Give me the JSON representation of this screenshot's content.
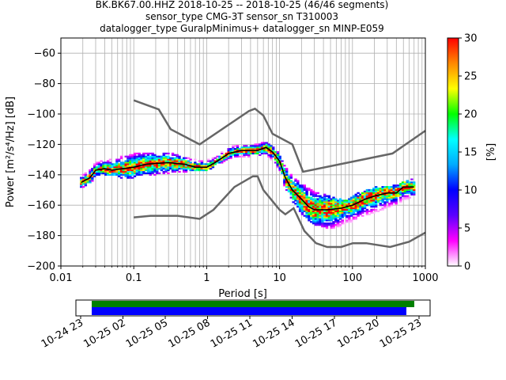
{
  "chart_data": {
    "type": "heatmap",
    "title_lines": [
      "BK.BK67.00.HHZ   2018-10-25 -- 2018-10-25  (46/46 segments)",
      "sensor_type CMG-3T sensor_sn T310003",
      "datalogger_type GuralpMinimus+ datalogger_sn MINP-E059"
    ],
    "xlabel": "Period [s]",
    "ylabel": "Power [m²/s⁴/Hz] [dB]",
    "x_scale": "log",
    "xlim": [
      0.01,
      1000
    ],
    "ylim": [
      -200,
      -50
    ],
    "grid": true,
    "x_ticks": [
      {
        "value": 0.01,
        "label": "0.01"
      },
      {
        "value": 0.1,
        "label": "0.1"
      },
      {
        "value": 1,
        "label": "1"
      },
      {
        "value": 10,
        "label": "10"
      },
      {
        "value": 100,
        "label": "100"
      },
      {
        "value": 1000,
        "label": "1000"
      }
    ],
    "y_ticks": [
      {
        "value": -60,
        "label": "−60"
      },
      {
        "value": -80,
        "label": "−80"
      },
      {
        "value": -100,
        "label": "−100"
      },
      {
        "value": -120,
        "label": "−120"
      },
      {
        "value": -140,
        "label": "−140"
      },
      {
        "value": -160,
        "label": "−160"
      },
      {
        "value": -180,
        "label": "−180"
      },
      {
        "value": -200,
        "label": "−200"
      }
    ],
    "colorbar": {
      "label": "[%]",
      "range": [
        0,
        30
      ],
      "ticks": [
        {
          "value": 0,
          "label": "0"
        },
        {
          "value": 5,
          "label": "5"
        },
        {
          "value": 10,
          "label": "10"
        },
        {
          "value": 15,
          "label": "15"
        },
        {
          "value": 20,
          "label": "20"
        },
        {
          "value": 25,
          "label": "25"
        },
        {
          "value": 30,
          "label": "30"
        }
      ],
      "colors": [
        "#ffffff",
        "#ff00ff",
        "#5a00ff",
        "#0000ff",
        "#00aaff",
        "#00ffff",
        "#00ff00",
        "#ffff00",
        "#ff8800",
        "#ff0000"
      ]
    },
    "nhnm": [
      [
        0.1,
        -91
      ],
      [
        0.22,
        -97
      ],
      [
        0.32,
        -110
      ],
      [
        0.8,
        -120
      ],
      [
        3.8,
        -98
      ],
      [
        4.6,
        -96.5
      ],
      [
        6.0,
        -101
      ],
      [
        8.0,
        -113
      ],
      [
        15,
        -120
      ],
      [
        21,
        -138
      ],
      [
        354,
        -126
      ],
      [
        1000,
        -111
      ]
    ],
    "nlnm": [
      [
        0.1,
        -168
      ],
      [
        0.17,
        -167
      ],
      [
        0.4,
        -167
      ],
      [
        0.8,
        -169
      ],
      [
        1.24,
        -163
      ],
      [
        2.4,
        -148
      ],
      [
        4.3,
        -141
      ],
      [
        5.0,
        -141
      ],
      [
        6.0,
        -150
      ],
      [
        10,
        -163
      ],
      [
        12,
        -166
      ],
      [
        15.6,
        -162
      ],
      [
        21.9,
        -177
      ],
      [
        31.6,
        -185
      ],
      [
        45,
        -187.5
      ],
      [
        70,
        -187.5
      ],
      [
        101,
        -185
      ],
      [
        154,
        -185
      ],
      [
        328,
        -187.5
      ],
      [
        600,
        -184
      ],
      [
        1000,
        -178
      ]
    ],
    "mean_curve": [
      [
        0.019,
        -145
      ],
      [
        0.025,
        -142
      ],
      [
        0.03,
        -137
      ],
      [
        0.04,
        -136
      ],
      [
        0.05,
        -137
      ],
      [
        0.07,
        -136
      ],
      [
        0.1,
        -135
      ],
      [
        0.15,
        -133
      ],
      [
        0.2,
        -132.5
      ],
      [
        0.3,
        -132
      ],
      [
        0.5,
        -133
      ],
      [
        0.7,
        -135
      ],
      [
        1.0,
        -135
      ],
      [
        1.3,
        -132
      ],
      [
        2.0,
        -126
      ],
      [
        3.0,
        -124
      ],
      [
        5.0,
        -124
      ],
      [
        6.5,
        -122
      ],
      [
        8.0,
        -125
      ],
      [
        10,
        -131
      ],
      [
        12,
        -142
      ],
      [
        15,
        -150
      ],
      [
        20,
        -156
      ],
      [
        25,
        -161
      ],
      [
        30,
        -163
      ],
      [
        45,
        -163
      ],
      [
        70,
        -162
      ],
      [
        100,
        -160
      ],
      [
        150,
        -156
      ],
      [
        200,
        -154
      ],
      [
        300,
        -152
      ],
      [
        400,
        -152
      ],
      [
        500,
        -148
      ],
      [
        700,
        -148
      ]
    ],
    "density_band": [
      [
        0.019,
        -148,
        -142
      ],
      [
        0.025,
        -146,
        -138
      ],
      [
        0.03,
        -140,
        -133
      ],
      [
        0.05,
        -140,
        -130
      ],
      [
        0.08,
        -142,
        -128
      ],
      [
        0.12,
        -140,
        -126
      ],
      [
        0.2,
        -139,
        -126
      ],
      [
        0.35,
        -138,
        -127
      ],
      [
        0.6,
        -137,
        -130
      ],
      [
        1.0,
        -137,
        -131
      ],
      [
        1.5,
        -132,
        -127
      ],
      [
        2.2,
        -128,
        -122
      ],
      [
        4.0,
        -127,
        -121
      ],
      [
        6.5,
        -126,
        -119
      ],
      [
        8.0,
        -130,
        -122
      ],
      [
        10,
        -136,
        -127
      ],
      [
        12,
        -148,
        -136
      ],
      [
        15,
        -156,
        -141
      ],
      [
        20,
        -165,
        -146
      ],
      [
        30,
        -172,
        -152
      ],
      [
        50,
        -175,
        -155
      ],
      [
        80,
        -172,
        -158
      ],
      [
        130,
        -167,
        -152
      ],
      [
        200,
        -164,
        -149
      ],
      [
        350,
        -160,
        -148
      ],
      [
        700,
        -153,
        -143
      ]
    ],
    "time_axis": {
      "labels": [
        "10-24 23",
        "10-25 02",
        "10-25 05",
        "10-25 08",
        "10-25 11",
        "10-25 14",
        "10-25 17",
        "10-25 20",
        "10-25 23"
      ],
      "data_coverage_color": "#008000",
      "gap_coverage_color": "#0000ff"
    }
  }
}
